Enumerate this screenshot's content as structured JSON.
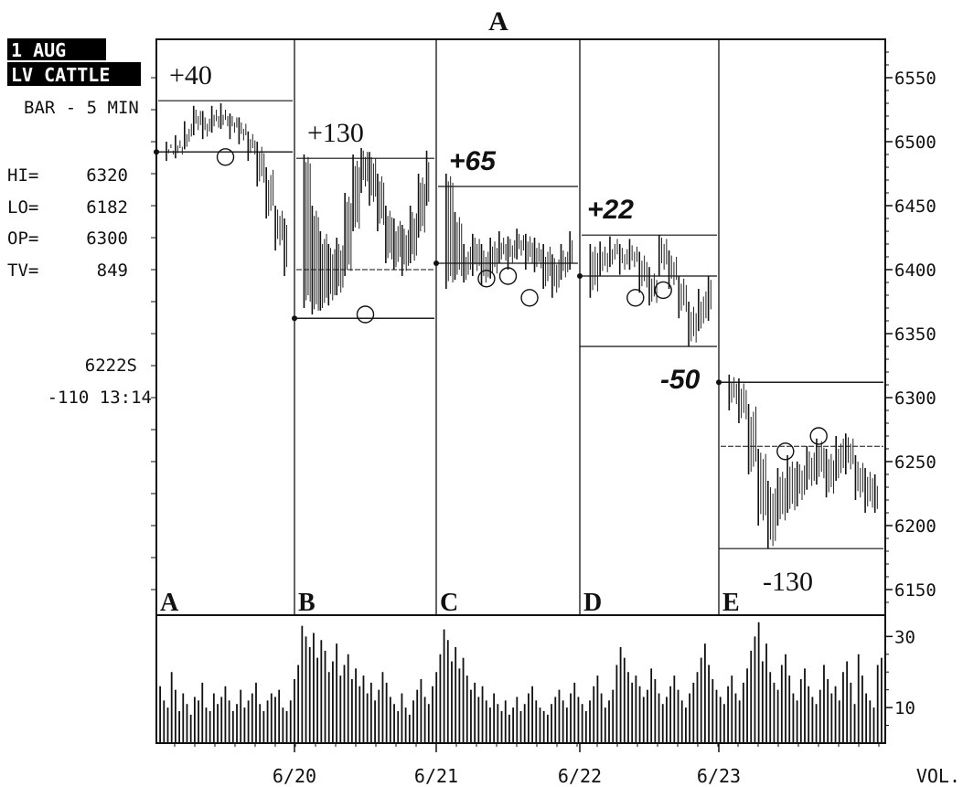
{
  "chart_data": {
    "type": "bar",
    "title": "A",
    "header": {
      "line1": "1  AUG",
      "line2": "LV CATTLE",
      "line3": "BAR - 5 MIN"
    },
    "stats": [
      {
        "label": "HI=",
        "value": "6320"
      },
      {
        "label": "LO=",
        "value": "6182"
      },
      {
        "label": "OP=",
        "value": "6300"
      },
      {
        "label": "TV=",
        "value": "849"
      }
    ],
    "last_price": "6222S",
    "last_change_time": "-110 13:14",
    "price_axis": {
      "min": 6130,
      "max": 6580,
      "ticks": [
        6150,
        6200,
        6250,
        6300,
        6350,
        6400,
        6450,
        6500,
        6550
      ]
    },
    "volume_axis": {
      "min": 0,
      "max": 36,
      "ticks": [
        10,
        30
      ],
      "label": "VOL."
    },
    "x_tick_labels": [
      "6/20",
      "6/21",
      "6/22",
      "6/23"
    ],
    "sessions": [
      {
        "letter": "A",
        "open": 6492,
        "high_line": 6532,
        "low_line": null,
        "annotation": "+40",
        "circles": [
          6488
        ],
        "bars": [
          [
            6492,
            6500,
            6485
          ],
          [
            6498,
            6505,
            6487
          ],
          [
            6506,
            6516,
            6494
          ],
          [
            6515,
            6528,
            6505
          ],
          [
            6512,
            6524,
            6502
          ],
          [
            6516,
            6528,
            6507
          ],
          [
            6518,
            6530,
            6510
          ],
          [
            6511,
            6522,
            6502
          ],
          [
            6508,
            6519,
            6498
          ],
          [
            6496,
            6508,
            6485
          ],
          [
            6480,
            6500,
            6465
          ],
          [
            6460,
            6480,
            6440
          ],
          [
            6432,
            6450,
            6415
          ],
          [
            6418,
            6440,
            6395
          ]
        ]
      },
      {
        "letter": "B",
        "open": 6362,
        "high_line": 6487,
        "low_line": 6362,
        "mid_line": 6400,
        "annotation": "+130",
        "circles": [
          6365
        ],
        "bars": [
          [
            6430,
            6490,
            6370
          ],
          [
            6400,
            6450,
            6365
          ],
          [
            6392,
            6430,
            6368
          ],
          [
            6388,
            6420,
            6372
          ],
          [
            6395,
            6425,
            6380
          ],
          [
            6420,
            6460,
            6395
          ],
          [
            6460,
            6490,
            6430
          ],
          [
            6478,
            6495,
            6460
          ],
          [
            6470,
            6492,
            6450
          ],
          [
            6455,
            6475,
            6430
          ],
          [
            6430,
            6450,
            6405
          ],
          [
            6420,
            6440,
            6400
          ],
          [
            6412,
            6435,
            6395
          ],
          [
            6428,
            6450,
            6405
          ],
          [
            6448,
            6475,
            6425
          ],
          [
            6470,
            6493,
            6450
          ]
        ]
      },
      {
        "letter": "C",
        "open": 6405,
        "high_line": 6465,
        "low_line": null,
        "mid_line": 6405,
        "annotation": "+65",
        "circles": [
          6393,
          6395,
          6378
        ],
        "bars": [
          [
            6435,
            6475,
            6385
          ],
          [
            6420,
            6445,
            6392
          ],
          [
            6402,
            6420,
            6390
          ],
          [
            6410,
            6428,
            6395
          ],
          [
            6400,
            6420,
            6388
          ],
          [
            6408,
            6425,
            6393
          ],
          [
            6418,
            6430,
            6405
          ],
          [
            6412,
            6426,
            6400
          ],
          [
            6420,
            6432,
            6408
          ],
          [
            6415,
            6428,
            6400
          ],
          [
            6412,
            6425,
            6398
          ],
          [
            6402,
            6420,
            6385
          ],
          [
            6396,
            6412,
            6378
          ],
          [
            6405,
            6420,
            6392
          ],
          [
            6415,
            6430,
            6400
          ]
        ]
      },
      {
        "letter": "D",
        "open": 6395,
        "high_line": 6427,
        "low_line": 6340,
        "mid_line": 6395,
        "annotation": "+22",
        "annotation2": "-50",
        "circles": [
          6378,
          6384
        ],
        "bars": [
          [
            6405,
            6420,
            6378
          ],
          [
            6410,
            6422,
            6395
          ],
          [
            6415,
            6426,
            6402
          ],
          [
            6408,
            6420,
            6396
          ],
          [
            6412,
            6424,
            6400
          ],
          [
            6398,
            6414,
            6382
          ],
          [
            6390,
            6402,
            6372
          ],
          [
            6410,
            6427,
            6395
          ],
          [
            6402,
            6415,
            6385
          ],
          [
            6378,
            6395,
            6362
          ],
          [
            6356,
            6375,
            6340
          ],
          [
            6368,
            6385,
            6352
          ],
          [
            6378,
            6395,
            6360
          ]
        ]
      },
      {
        "letter": "E",
        "open": 6312,
        "high_line": 6312,
        "low_line": 6182,
        "mid_line": 6262,
        "annotation": "-130",
        "circles": [
          6258,
          6270
        ],
        "bars": [
          [
            6308,
            6318,
            6290
          ],
          [
            6300,
            6315,
            6280
          ],
          [
            6275,
            6295,
            6240
          ],
          [
            6232,
            6260,
            6200
          ],
          [
            6205,
            6235,
            6182
          ],
          [
            6222,
            6245,
            6200
          ],
          [
            6230,
            6255,
            6210
          ],
          [
            6235,
            6250,
            6215
          ],
          [
            6245,
            6262,
            6228
          ],
          [
            6250,
            6268,
            6232
          ],
          [
            6240,
            6260,
            6222
          ],
          [
            6252,
            6270,
            6235
          ],
          [
            6258,
            6272,
            6240
          ],
          [
            6240,
            6255,
            6220
          ],
          [
            6228,
            6245,
            6210
          ],
          [
            6225,
            6240,
            6210
          ]
        ]
      }
    ],
    "volume": [
      16,
      12,
      10,
      20,
      15,
      9,
      14,
      11,
      8,
      13,
      12,
      17,
      10,
      9,
      14,
      11,
      13,
      16,
      12,
      9,
      11,
      15,
      10,
      12,
      14,
      17,
      11,
      9,
      12,
      14,
      13,
      15,
      10,
      9,
      12,
      18,
      22,
      33,
      30,
      27,
      31,
      24,
      29,
      26,
      20,
      23,
      28,
      19,
      22,
      25,
      18,
      21,
      16,
      19,
      14,
      17,
      12,
      15,
      20,
      17,
      13,
      11,
      9,
      14,
      10,
      8,
      12,
      15,
      18,
      13,
      11,
      16,
      20,
      25,
      32,
      29,
      23,
      27,
      21,
      24,
      19,
      15,
      17,
      13,
      16,
      12,
      10,
      14,
      11,
      9,
      12,
      8,
      10,
      13,
      9,
      11,
      14,
      16,
      12,
      10,
      9,
      8,
      11,
      13,
      15,
      12,
      10,
      14,
      17,
      13,
      11,
      9,
      12,
      16,
      19,
      14,
      10,
      12,
      15,
      22,
      27,
      24,
      20,
      17,
      19,
      16,
      13,
      15,
      21,
      18,
      14,
      11,
      13,
      16,
      19,
      15,
      12,
      10,
      14,
      17,
      20,
      24,
      28,
      22,
      18,
      15,
      13,
      11,
      16,
      19,
      14,
      12,
      17,
      21,
      26,
      30,
      34,
      23,
      28,
      20,
      17,
      15,
      22,
      25,
      19,
      14,
      12,
      18,
      21,
      16,
      13,
      11,
      15,
      22,
      18,
      14,
      16,
      12,
      20,
      23,
      17,
      11,
      25,
      19,
      14,
      12,
      10,
      22,
      24
    ]
  }
}
